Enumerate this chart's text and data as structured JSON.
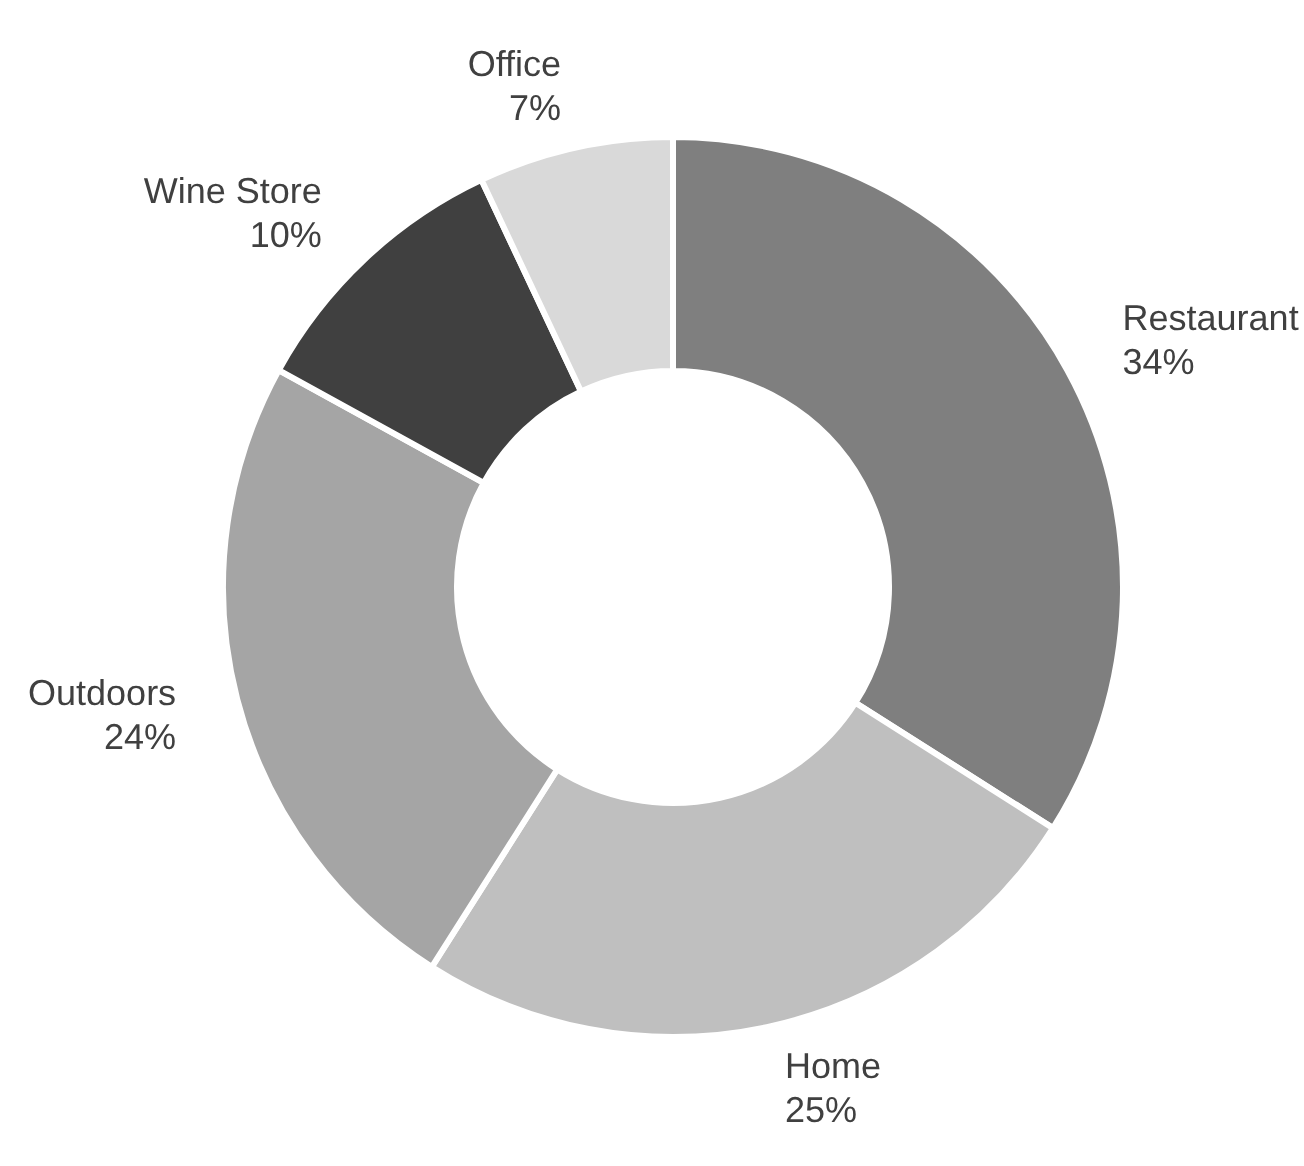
{
  "chart_data": {
    "type": "donut",
    "categories": [
      "Restaurant",
      "Home",
      "Outdoors",
      "Wine Store",
      "Office"
    ],
    "values": [
      34,
      25,
      24,
      10,
      7
    ],
    "value_labels": [
      "34%",
      "25%",
      "24%",
      "10%",
      "7%"
    ],
    "colors": [
      "#7f7f7f",
      "#bfbfbf",
      "#a5a5a5",
      "#404040",
      "#d9d9d9"
    ]
  }
}
